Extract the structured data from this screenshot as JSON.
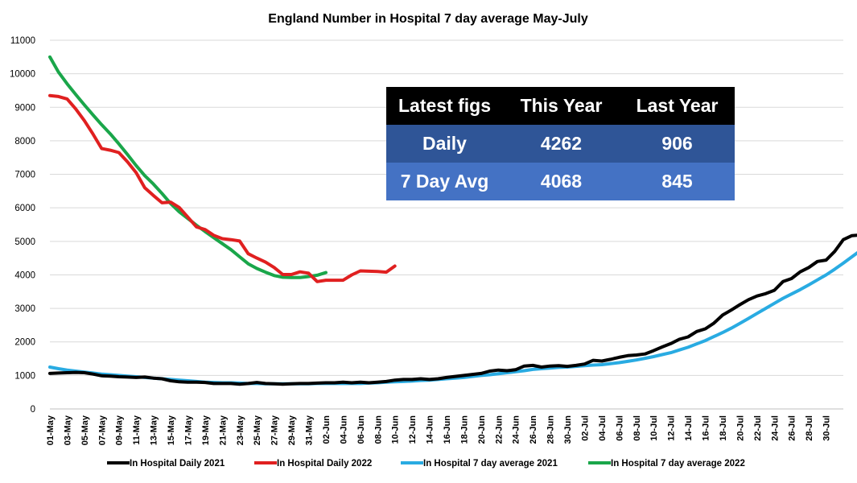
{
  "chart_data": {
    "type": "line",
    "title": "England Number in Hospital 7 day average May-July",
    "xlabel": "",
    "ylabel": "",
    "ylim": [
      0,
      11000
    ],
    "yticks": [
      0,
      1000,
      2000,
      3000,
      4000,
      5000,
      6000,
      7000,
      8000,
      9000,
      10000,
      11000
    ],
    "grid": true,
    "legend_position": "bottom",
    "x_tick_labels": [
      "01-May",
      "03-May",
      "05-May",
      "07-May",
      "09-May",
      "11-May",
      "13-May",
      "15-May",
      "17-May",
      "19-May",
      "21-May",
      "23-May",
      "25-May",
      "27-May",
      "29-May",
      "31-May",
      "02-Jun",
      "04-Jun",
      "06-Jun",
      "08-Jun",
      "10-Jun",
      "12-Jun",
      "14-Jun",
      "16-Jun",
      "18-Jun",
      "20-Jun",
      "22-Jun",
      "24-Jun",
      "26-Jun",
      "28-Jun",
      "30-Jun",
      "02-Jul",
      "04-Jul",
      "06-Jul",
      "08-Jul",
      "10-Jul",
      "12-Jul",
      "14-Jul",
      "16-Jul",
      "18-Jul",
      "20-Jul",
      "22-Jul",
      "24-Jul",
      "26-Jul",
      "28-Jul",
      "30-Jul"
    ],
    "series": [
      {
        "name": "In Hospital Daily 2021",
        "color": "#000000",
        "start_day": 0,
        "values": [
          1060,
          1070,
          1080,
          1090,
          1080,
          1040,
          990,
          980,
          960,
          950,
          940,
          950,
          920,
          900,
          840,
          810,
          800,
          800,
          790,
          760,
          760,
          760,
          740,
          760,
          790,
          760,
          750,
          740,
          750,
          760,
          760,
          770,
          780,
          780,
          800,
          780,
          800,
          780,
          800,
          820,
          860,
          880,
          880,
          900,
          880,
          900,
          940,
          970,
          1000,
          1030,
          1060,
          1130,
          1160,
          1140,
          1170,
          1280,
          1300,
          1250,
          1280,
          1290,
          1270,
          1300,
          1340,
          1450,
          1430,
          1480,
          1540,
          1590,
          1610,
          1640,
          1740,
          1850,
          1950,
          2080,
          2150,
          2310,
          2390,
          2560,
          2800,
          2950,
          3110,
          3260,
          3370,
          3440,
          3540,
          3800,
          3890,
          4090,
          4220,
          4400,
          4440,
          4700,
          5050,
          5170,
          5190,
          5060,
          5120,
          5040
        ]
      },
      {
        "name": "In Hospital Daily 2022",
        "color": "#e02020",
        "start_day": 0,
        "values": [
          9350,
          9320,
          9250,
          8950,
          8600,
          8200,
          7770,
          7720,
          7650,
          7370,
          7050,
          6600,
          6370,
          6150,
          6170,
          6010,
          5720,
          5430,
          5350,
          5180,
          5080,
          5050,
          5010,
          4630,
          4500,
          4380,
          4220,
          4010,
          4010,
          4090,
          4050,
          3800,
          3840,
          3840,
          3840,
          4000,
          4120,
          4110,
          4100,
          4080,
          4262
        ]
      },
      {
        "name": "In Hospital 7 day average 2021",
        "color": "#29abe2",
        "start_day": 0,
        "values": [
          1250,
          1200,
          1160,
          1130,
          1100,
          1070,
          1040,
          1020,
          1000,
          980,
          960,
          940,
          920,
          900,
          880,
          860,
          840,
          820,
          800,
          790,
          780,
          780,
          770,
          760,
          760,
          750,
          750,
          750,
          750,
          750,
          750,
          760,
          760,
          760,
          760,
          760,
          760,
          770,
          780,
          800,
          810,
          820,
          830,
          850,
          860,
          880,
          900,
          920,
          940,
          970,
          1000,
          1020,
          1050,
          1080,
          1110,
          1140,
          1180,
          1200,
          1220,
          1240,
          1250,
          1270,
          1290,
          1310,
          1320,
          1350,
          1380,
          1420,
          1460,
          1510,
          1560,
          1620,
          1680,
          1760,
          1840,
          1940,
          2040,
          2160,
          2280,
          2410,
          2550,
          2700,
          2850,
          3000,
          3150,
          3300,
          3430,
          3560,
          3700,
          3850,
          4000,
          4170,
          4350,
          4540,
          4730,
          4850,
          4960,
          5050
        ]
      },
      {
        "name": "In Hospital 7 day average 2022",
        "color": "#1aa64a",
        "start_day": 0,
        "values": [
          10500,
          10050,
          9700,
          9380,
          9070,
          8770,
          8480,
          8210,
          7910,
          7590,
          7260,
          6960,
          6710,
          6430,
          6130,
          5880,
          5680,
          5480,
          5290,
          5110,
          4930,
          4750,
          4540,
          4330,
          4190,
          4080,
          3980,
          3930,
          3920,
          3920,
          3950,
          3990,
          4068
        ]
      }
    ],
    "x_day_offsets": [
      0,
      0,
      0,
      0
    ],
    "legend": [
      "In Hospital Daily 2021",
      "In Hospital Daily 2022",
      "In Hospital 7 day average 2021",
      "In Hospital 7 day average 2022"
    ]
  },
  "summary_table": {
    "headers": [
      "Latest figs",
      "This Year",
      "Last Year"
    ],
    "rows": [
      {
        "label": "Daily",
        "this_year": "4262",
        "last_year": "906"
      },
      {
        "label": "7 Day Avg",
        "this_year": "4068",
        "last_year": "845"
      }
    ],
    "colors": {
      "header_bg": "#000000",
      "daily_bg": "#2f5597",
      "avg_bg": "#4472c4"
    }
  }
}
